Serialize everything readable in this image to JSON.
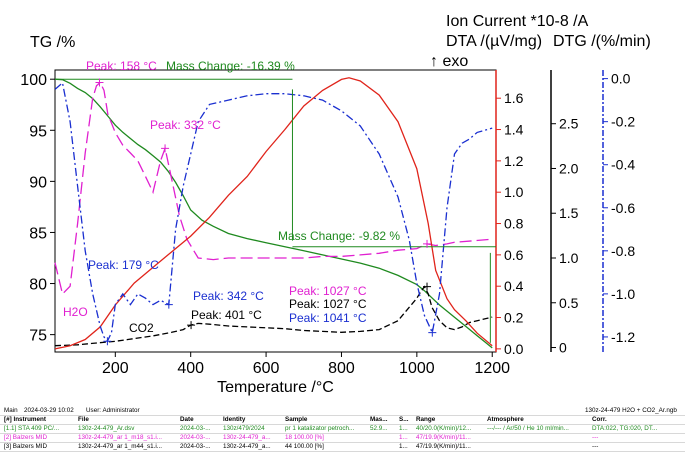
{
  "chart_data": {
    "type": "line",
    "xlabel": "Temperature /°C",
    "xlim": [
      40,
      1210
    ],
    "xticks": [
      200,
      400,
      600,
      800,
      1000,
      1200
    ],
    "axes": {
      "tg": {
        "label": "TG /%",
        "ticks": [
          75,
          80,
          85,
          90,
          95,
          100
        ],
        "range": [
          73.3,
          100.9
        ]
      },
      "ion": {
        "label": "Ion Current *10-8 /A",
        "ticks": [
          0.0,
          0.2,
          0.4,
          0.6,
          0.8,
          1.0,
          1.2,
          1.4,
          1.6
        ],
        "range": [
          -0.02,
          1.78
        ],
        "color": "#e0241b"
      },
      "dta": {
        "label": "DTA /(µV/mg)",
        "sublabel": "↑ exo",
        "ticks": [
          0,
          0.5,
          1.0,
          1.5,
          2.0,
          2.5
        ],
        "range": [
          -0.05,
          3.1
        ]
      },
      "dtg": {
        "label": "DTG /(%/min)",
        "ticks": [
          0.0,
          -0.2,
          -0.4,
          -0.6,
          -0.8,
          -1.0,
          -1.2
        ],
        "range": [
          -1.27,
          0.04
        ],
        "color": "#1a2fd0"
      }
    },
    "series": [
      {
        "name": "TG",
        "axis": "tg",
        "color": "#1f8a1f",
        "dash": "",
        "x": [
          40,
          60,
          80,
          100,
          120,
          140,
          160,
          180,
          200,
          220,
          240,
          260,
          280,
          300,
          320,
          340,
          360,
          380,
          400,
          430,
          460,
          500,
          550,
          600,
          650,
          700,
          750,
          800,
          850,
          900,
          950,
          1000,
          1020,
          1040,
          1060,
          1080,
          1100,
          1120,
          1140,
          1160,
          1180,
          1200
        ],
        "y": [
          100,
          99.95,
          99.6,
          99.1,
          98.7,
          98.1,
          97.3,
          96.4,
          95.5,
          94.8,
          94.2,
          93.6,
          93.1,
          92.5,
          91.9,
          91.0,
          89.9,
          88.6,
          87.2,
          86.2,
          85.6,
          84.9,
          84.4,
          84.0,
          83.6,
          83.2,
          82.8,
          82.4,
          82.0,
          81.5,
          80.8,
          79.9,
          79.3,
          78.6,
          77.9,
          77.3,
          76.7,
          76.1,
          75.5,
          74.9,
          74.3,
          73.7
        ]
      },
      {
        "name": "DTA",
        "axis": "dta",
        "color": "#000000",
        "dash": "6,3",
        "x": [
          40,
          100,
          150,
          200,
          250,
          300,
          350,
          380,
          400,
          420,
          450,
          500,
          550,
          600,
          650,
          700,
          750,
          800,
          850,
          900,
          950,
          980,
          1000,
          1010,
          1020,
          1030,
          1040,
          1060,
          1080,
          1100,
          1120,
          1140,
          1160,
          1180,
          1200
        ],
        "y": [
          0.02,
          0.03,
          0.05,
          0.07,
          0.1,
          0.13,
          0.17,
          0.2,
          0.25,
          0.27,
          0.26,
          0.24,
          0.23,
          0.22,
          0.21,
          0.19,
          0.18,
          0.17,
          0.18,
          0.2,
          0.3,
          0.45,
          0.55,
          0.62,
          0.68,
          0.6,
          0.45,
          0.3,
          0.22,
          0.2,
          0.23,
          0.28,
          0.3,
          0.32,
          0.34
        ]
      },
      {
        "name": "H2O",
        "axis": "ion",
        "color": "#e020d0",
        "dash": "12,5",
        "x": [
          40,
          60,
          80,
          100,
          120,
          140,
          150,
          160,
          170,
          180,
          200,
          220,
          240,
          260,
          280,
          300,
          320,
          332,
          350,
          370,
          390,
          420,
          460,
          500,
          550,
          600,
          650,
          700,
          750,
          800,
          850,
          900,
          950,
          1000,
          1027,
          1050,
          1080,
          1100,
          1150,
          1200
        ],
        "y": [
          0.55,
          0.35,
          0.4,
          0.8,
          1.25,
          1.6,
          1.68,
          1.7,
          1.65,
          1.5,
          1.38,
          1.3,
          1.25,
          1.2,
          1.1,
          1.0,
          1.2,
          1.28,
          1.08,
          0.85,
          0.7,
          0.58,
          0.57,
          0.58,
          0.58,
          0.58,
          0.58,
          0.58,
          0.59,
          0.59,
          0.6,
          0.61,
          0.63,
          0.64,
          0.67,
          0.66,
          0.67,
          0.68,
          0.69,
          0.7
        ]
      },
      {
        "name": "Ion Current",
        "axis": "ion",
        "color": "#e0241b",
        "dash": "",
        "x": [
          40,
          80,
          120,
          160,
          200,
          250,
          300,
          350,
          400,
          450,
          500,
          550,
          600,
          650,
          700,
          750,
          800,
          820,
          850,
          900,
          950,
          1000,
          1030,
          1050,
          1080,
          1100,
          1130,
          1160,
          1200
        ],
        "y": [
          0.0,
          0.02,
          0.06,
          0.14,
          0.28,
          0.42,
          0.52,
          0.62,
          0.72,
          0.84,
          0.98,
          1.1,
          1.26,
          1.4,
          1.55,
          1.65,
          1.72,
          1.73,
          1.71,
          1.62,
          1.45,
          1.15,
          0.8,
          0.5,
          0.32,
          0.25,
          0.18,
          0.1,
          0.02
        ]
      },
      {
        "name": "DTG",
        "axis": "dtg",
        "color": "#1a2fd0",
        "dash": "8,3,2,3",
        "x": [
          40,
          60,
          80,
          100,
          120,
          140,
          160,
          170,
          179,
          190,
          200,
          220,
          240,
          260,
          280,
          300,
          320,
          342,
          360,
          380,
          400,
          420,
          450,
          500,
          550,
          600,
          650,
          700,
          750,
          800,
          850,
          900,
          950,
          980,
          1000,
          1020,
          1041,
          1060,
          1080,
          1100,
          1120,
          1140,
          1160,
          1180,
          1200
        ],
        "y": [
          -0.05,
          -0.02,
          -0.2,
          -0.5,
          -0.8,
          -1.0,
          -1.15,
          -1.2,
          -1.22,
          -1.18,
          -1.05,
          -1.0,
          -1.05,
          -1.0,
          -1.02,
          -1.05,
          -1.03,
          -1.05,
          -0.7,
          -0.5,
          -0.35,
          -0.2,
          -0.12,
          -0.1,
          -0.08,
          -0.07,
          -0.07,
          -0.08,
          -0.1,
          -0.15,
          -0.22,
          -0.35,
          -0.55,
          -0.75,
          -0.95,
          -1.1,
          -1.18,
          -1.0,
          -0.6,
          -0.35,
          -0.3,
          -0.28,
          -0.25,
          -0.24,
          -0.23
        ]
      }
    ],
    "annotations": [
      {
        "text": "Peak: 158 °C",
        "color": "#e020d0"
      },
      {
        "text": "Mass Change: -16.39 %",
        "color": "#1f8a1f"
      },
      {
        "text": "Peak: 332 °C",
        "color": "#e020d0"
      },
      {
        "text": "Mass Change: -9.82 %",
        "color": "#1f8a1f"
      },
      {
        "text": "Peak: 179 °C",
        "color": "#1a2fd0"
      },
      {
        "text": "H2O",
        "color": "#e020d0"
      },
      {
        "text": "Peak: 342 °C",
        "color": "#1a2fd0"
      },
      {
        "text": "Peak: 401 °C",
        "color": "#000000"
      },
      {
        "text": "CO2",
        "color": "#000000"
      },
      {
        "text": "Peak: 1027 °C",
        "color": "#e020d0"
      },
      {
        "text": "Peak: 1027 °C",
        "color": "#000000"
      },
      {
        "text": "Peak: 1041 °C",
        "color": "#1a2fd0"
      }
    ]
  },
  "info": {
    "main_label": "Main",
    "date_time": "2024-03-29 10:02",
    "user": "User: Administrator",
    "file_right": "130z-24-479 H2O + CO2_Ar.ngb",
    "headers": [
      "[#] Instrument",
      "File",
      "Date",
      "Identity",
      "Sample",
      "Mas...",
      "S...",
      "Range",
      "Atmosphere",
      "Corr."
    ],
    "rows": [
      {
        "color": "#1f8a1f",
        "cells": [
          "[1.1] STA 409 PC/...",
          "130z-24-479_Ar.dsv",
          "2024-03-...",
          "130z/479/2024",
          "pr 1 katalizator petroch...",
          "52.9...",
          "1...",
          "40/20.0(K/min)/12...",
          "---/--- / Ar/50 / He 10 ml/min...",
          "DTA:022, TG:020, DT..."
        ]
      },
      {
        "color": "#e020d0",
        "cells": [
          "[2] Balzers MID",
          "130z-24-479_ar 1_m18_s1.i...",
          "2024-03-...",
          "130z-24-479_a...",
          "18       100.00    [%]",
          "",
          "1...",
          "47/19.9(K/min)/11...",
          "",
          "---"
        ]
      },
      {
        "color": "#000000",
        "cells": [
          "[3] Balzers MID",
          "130z-24-479_ar 1_m44_s1.i...",
          "2024-03-...",
          "130z-24-479_a...",
          "44       100.00    [%]",
          "",
          "1...",
          "47/19.9(K/min)/11...",
          "",
          "---"
        ]
      }
    ]
  }
}
